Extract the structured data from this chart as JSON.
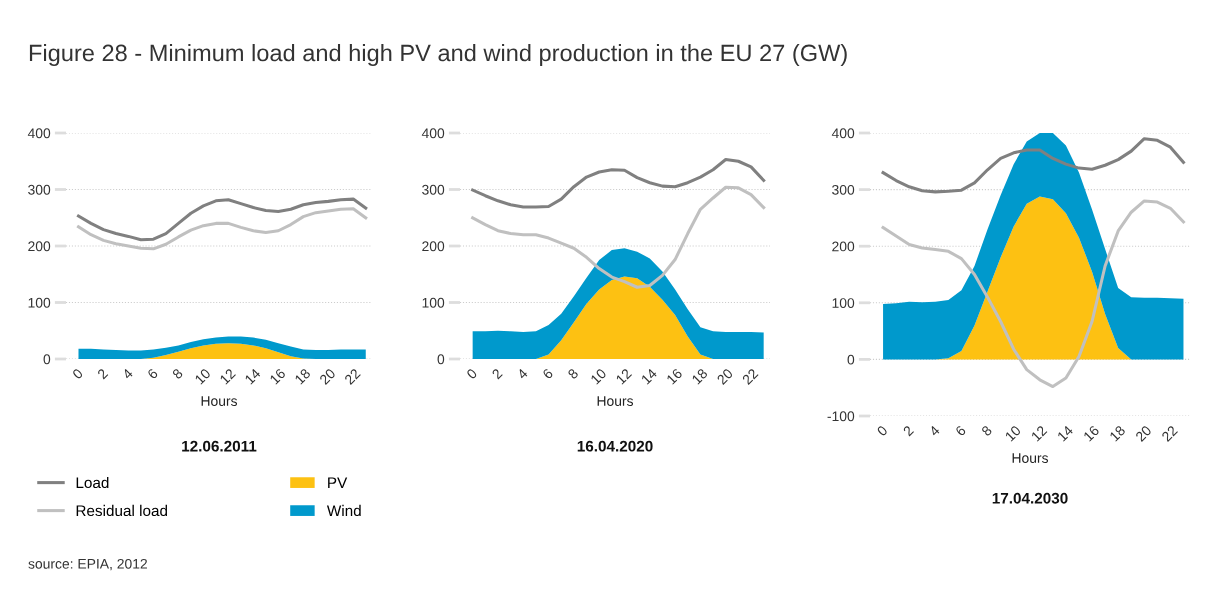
{
  "chart_data": [
    {
      "type": "line",
      "title": "Figure 28 - Minimum load and high PV and wind production in the EU 27 (GW)",
      "subtitle": "12.06.2011",
      "xlabel": "Hours",
      "annotations": [
        "source: EPIA, 2012"
      ],
      "legend": "bottom",
      "grid": "y",
      "stacked": true,
      "x": [
        0,
        1,
        2,
        3,
        4,
        5,
        6,
        7,
        8,
        9,
        10,
        11,
        12,
        13,
        14,
        15,
        16,
        17,
        18,
        19,
        20,
        21,
        22,
        23
      ],
      "xlim": [
        -1,
        23.5
      ],
      "xticks": [
        0,
        2,
        4,
        6,
        8,
        10,
        12,
        14,
        16,
        18,
        20,
        22
      ],
      "ylim": [
        0,
        400
      ],
      "yticks": [
        0,
        100,
        200,
        300,
        400
      ],
      "series": [
        {
          "name": "PV",
          "type": "area",
          "color": "#fdc112",
          "values": [
            0,
            0,
            0,
            0,
            0,
            0,
            2,
            7,
            13,
            19,
            24,
            27,
            28,
            27,
            24,
            19,
            12,
            5,
            1,
            0,
            0,
            0,
            0,
            0
          ]
        },
        {
          "name": "Wind",
          "type": "area",
          "color": "#0099cc",
          "values": [
            18,
            18,
            17,
            16,
            15,
            15,
            15,
            13,
            11,
            11,
            11,
            11,
            12,
            13,
            14,
            15,
            16,
            17,
            16,
            16,
            16,
            17,
            17,
            17
          ]
        },
        {
          "name": "Load",
          "color": "#808080",
          "values": [
            253,
            240,
            229,
            222,
            217,
            211,
            212,
            222,
            240,
            258,
            271,
            280,
            282,
            275,
            268,
            263,
            261,
            265,
            273,
            277,
            279,
            282,
            283,
            267
          ]
        },
        {
          "name": "Residual load",
          "color": "#c0c0c0",
          "values": [
            234,
            220,
            210,
            204,
            200,
            196,
            195,
            203,
            216,
            228,
            236,
            240,
            240,
            233,
            227,
            224,
            227,
            238,
            252,
            259,
            262,
            265,
            266,
            250
          ]
        }
      ]
    },
    {
      "type": "line",
      "subtitle": "16.04.2020",
      "xlabel": "Hours",
      "grid": "y",
      "stacked": true,
      "x": [
        0,
        1,
        2,
        3,
        4,
        5,
        6,
        7,
        8,
        9,
        10,
        11,
        12,
        13,
        14,
        15,
        16,
        17,
        18,
        19,
        20,
        21,
        22,
        23
      ],
      "xlim": [
        -1,
        23.5
      ],
      "xticks": [
        0,
        2,
        4,
        6,
        8,
        10,
        12,
        14,
        16,
        18,
        20,
        22
      ],
      "ylim": [
        0,
        400
      ],
      "yticks": [
        0,
        100,
        200,
        300,
        400
      ],
      "series": [
        {
          "type": "area",
          "color": "#fdc112",
          "values": [
            0,
            0,
            0,
            0,
            0,
            0,
            8,
            33,
            65,
            98,
            123,
            140,
            146,
            143,
            128,
            105,
            78,
            40,
            8,
            0,
            0,
            0,
            0,
            0
          ]
        },
        {
          "type": "area",
          "color": "#0099cc",
          "values": [
            49,
            49,
            50,
            49,
            48,
            49,
            52,
            47,
            46,
            46,
            52,
            53,
            50,
            47,
            50,
            50,
            45,
            48,
            48,
            49,
            48,
            48,
            48,
            47
          ]
        },
        {
          "color": "#808080",
          "values": [
            299,
            289,
            280,
            273,
            269,
            269,
            270,
            283,
            305,
            322,
            331,
            335,
            334,
            321,
            312,
            306,
            305,
            312,
            322,
            335,
            353,
            350,
            340,
            316
          ]
        },
        {
          "color": "#c0c0c0",
          "values": [
            250,
            238,
            227,
            222,
            220,
            220,
            214,
            205,
            196,
            180,
            160,
            145,
            137,
            127,
            130,
            148,
            176,
            222,
            265,
            285,
            304,
            303,
            291,
            268
          ]
        }
      ]
    },
    {
      "type": "line",
      "subtitle": "17.04.2030",
      "xlabel": "Hours",
      "grid": "y",
      "stacked": true,
      "x": [
        0,
        1,
        2,
        3,
        4,
        5,
        6,
        7,
        8,
        9,
        10,
        11,
        12,
        13,
        14,
        15,
        16,
        17,
        18,
        19,
        20,
        21,
        22,
        23
      ],
      "xlim": [
        -1,
        23.5
      ],
      "xticks": [
        0,
        2,
        4,
        6,
        8,
        10,
        12,
        14,
        16,
        18,
        20,
        22
      ],
      "ylim": [
        -100,
        400
      ],
      "yticks": [
        -100,
        0,
        100,
        200,
        300,
        400
      ],
      "series": [
        {
          "type": "area",
          "color": "#fdc112",
          "values": [
            0,
            0,
            0,
            0,
            0,
            2,
            15,
            60,
            120,
            180,
            235,
            275,
            288,
            283,
            258,
            215,
            155,
            80,
            20,
            0,
            0,
            0,
            0,
            0
          ]
        },
        {
          "type": "area",
          "color": "#0099cc",
          "values": [
            98,
            99,
            102,
            101,
            102,
            103,
            107,
            105,
            110,
            110,
            110,
            110,
            112,
            117,
            120,
            115,
            110,
            115,
            106,
            110,
            109,
            109,
            108,
            107
          ]
        },
        {
          "color": "#808080",
          "values": [
            330,
            316,
            305,
            298,
            296,
            297,
            299,
            312,
            335,
            355,
            365,
            370,
            370,
            355,
            345,
            338,
            336,
            343,
            353,
            368,
            390,
            387,
            375,
            348
          ]
        },
        {
          "color": "#c0c0c0",
          "values": [
            233,
            218,
            203,
            197,
            194,
            191,
            178,
            150,
            110,
            67,
            18,
            -18,
            -36,
            -48,
            -33,
            5,
            67,
            165,
            227,
            260,
            280,
            278,
            267,
            243
          ]
        }
      ]
    }
  ]
}
